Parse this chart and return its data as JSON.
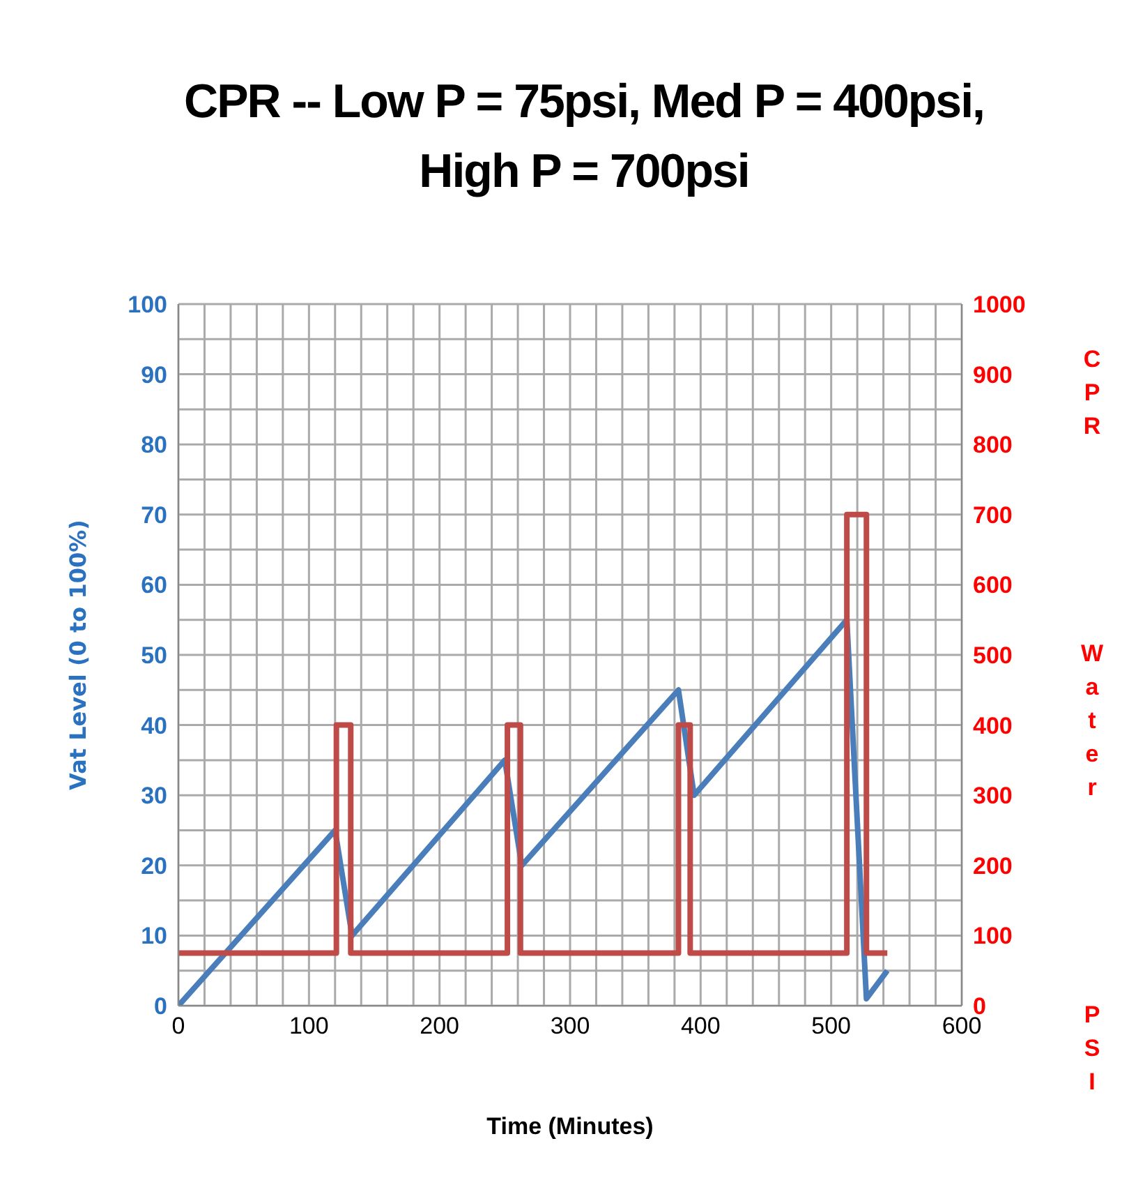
{
  "chart_data": {
    "type": "line",
    "title": "CPR -- Low P = 75psi, Med P = 400psi,\nHigh P = 700psi",
    "xlabel": "Time (Minutes)",
    "ylabel": "Vat Level (0 to 100%)",
    "y2label": "CPR Water PSI",
    "xlim": [
      0,
      600
    ],
    "xticks": [
      0,
      {
        "value": 20,
        "label": null
      },
      {
        "value": 40,
        "label": null
      },
      {
        "value": 60,
        "label": null
      },
      {
        "value": 80,
        "label": null
      },
      100,
      {
        "value": 120,
        "label": null
      },
      {
        "value": 140,
        "label": null
      },
      {
        "value": 160,
        "label": null
      },
      {
        "value": 180,
        "label": null
      },
      200,
      {
        "value": 220,
        "label": null
      },
      {
        "value": 240,
        "label": null
      },
      {
        "value": 260,
        "label": null
      },
      {
        "value": 280,
        "label": null
      },
      300,
      {
        "value": 320,
        "label": null
      },
      {
        "value": 340,
        "label": null
      },
      {
        "value": 360,
        "label": null
      },
      {
        "value": 380,
        "label": null
      },
      400,
      {
        "value": 420,
        "label": null
      },
      {
        "value": 440,
        "label": null
      },
      {
        "value": 460,
        "label": null
      },
      {
        "value": 480,
        "label": null
      },
      500,
      {
        "value": 520,
        "label": null
      },
      {
        "value": 540,
        "label": null
      },
      {
        "value": 560,
        "label": null
      },
      {
        "value": 580,
        "label": null
      },
      600
    ],
    "ylim": [
      0,
      100
    ],
    "yticks": [
      0,
      {
        "value": 5,
        "label": null
      },
      10,
      {
        "value": 15,
        "label": null
      },
      20,
      {
        "value": 25,
        "label": null
      },
      30,
      {
        "value": 35,
        "label": null
      },
      40,
      {
        "value": 45,
        "label": null
      },
      50,
      {
        "value": 55,
        "label": null
      },
      60,
      {
        "value": 65,
        "label": null
      },
      70,
      {
        "value": 75,
        "label": null
      },
      80,
      {
        "value": 85,
        "label": null
      },
      90,
      {
        "value": 95,
        "label": null
      },
      100
    ],
    "y2lim": [
      0,
      1000
    ],
    "y2ticks": [
      0,
      100,
      200,
      300,
      400,
      500,
      600,
      700,
      800,
      900,
      1000
    ],
    "grid": true,
    "series": [
      {
        "color": "#4a7ebb",
        "x": [
          0,
          120,
          133,
          250,
          263,
          383,
          395,
          512,
          527,
          543
        ],
        "values": [
          0,
          25,
          10,
          35,
          20,
          45,
          30,
          55,
          1,
          5
        ]
      },
      {
        "color": "#be4b48",
        "axis": "y2",
        "x": [
          0,
          121,
          121,
          132,
          132,
          252,
          252,
          262,
          262,
          383,
          383,
          392,
          392,
          512,
          512,
          527,
          527,
          543
        ],
        "values": [
          75,
          75,
          400,
          400,
          75,
          75,
          400,
          400,
          75,
          75,
          400,
          400,
          75,
          75,
          700,
          700,
          75,
          75
        ]
      }
    ]
  }
}
